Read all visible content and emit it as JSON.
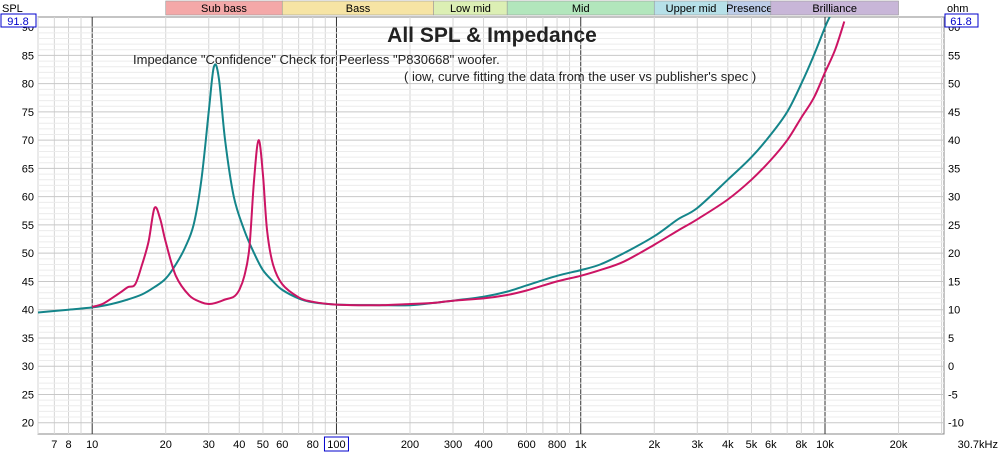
{
  "chart_data": {
    "type": "line",
    "title": "All SPL & Impedance",
    "subtitle_line1": "Impedance \"Confidence\" Check for Peerless \"P830668\" woofer.",
    "subtitle_line2": "( iow, curve fitting the data from  the user vs publisher's spec )",
    "left_axis": {
      "unit": "SPL",
      "top_value": "91.8",
      "ylim": [
        18,
        91.8
      ],
      "ticks": [
        90,
        85,
        80,
        75,
        70,
        65,
        60,
        55,
        50,
        45,
        40,
        35,
        30,
        25,
        20
      ]
    },
    "right_axis": {
      "unit": "ohm",
      "top_value": "61.8",
      "ylim": [
        -12,
        61.8
      ],
      "ticks": [
        60,
        55,
        50,
        45,
        40,
        35,
        30,
        25,
        20,
        15,
        10,
        5,
        0,
        -5,
        -10
      ]
    },
    "x_axis": {
      "scale": "log",
      "xlim": [
        6,
        30700
      ],
      "tick_labels": [
        {
          "v": 7,
          "t": "7"
        },
        {
          "v": 8,
          "t": "8"
        },
        {
          "v": 10,
          "t": "10"
        },
        {
          "v": 20,
          "t": "20"
        },
        {
          "v": 30,
          "t": "30"
        },
        {
          "v": 40,
          "t": "40"
        },
        {
          "v": 50,
          "t": "50"
        },
        {
          "v": 60,
          "t": "60"
        },
        {
          "v": 80,
          "t": "80"
        },
        {
          "v": 100,
          "t": "100"
        },
        {
          "v": 200,
          "t": "200"
        },
        {
          "v": 300,
          "t": "300"
        },
        {
          "v": 400,
          "t": "400"
        },
        {
          "v": 600,
          "t": "600"
        },
        {
          "v": 800,
          "t": "800"
        },
        {
          "v": 1000,
          "t": "1k"
        },
        {
          "v": 2000,
          "t": "2k"
        },
        {
          "v": 3000,
          "t": "3k"
        },
        {
          "v": 4000,
          "t": "4k"
        },
        {
          "v": 5000,
          "t": "5k"
        },
        {
          "v": 6000,
          "t": "6k"
        },
        {
          "v": 8000,
          "t": "8k"
        },
        {
          "v": 10000,
          "t": "10k"
        },
        {
          "v": 20000,
          "t": "20k"
        },
        {
          "v": 30700,
          "t": "30.7kHz"
        }
      ]
    },
    "bands": [
      {
        "name": "Sub bass",
        "from": 20,
        "to": 60,
        "color": "#f4a8a8"
      },
      {
        "name": "Bass",
        "from": 60,
        "to": 250,
        "color": "#f6e4a4"
      },
      {
        "name": "Low mid",
        "from": 250,
        "to": 500,
        "color": "#dcefb4"
      },
      {
        "name": "Mid",
        "from": 500,
        "to": 2000,
        "color": "#b2e6bc"
      },
      {
        "name": "Upper mid",
        "from": 2000,
        "to": 4000,
        "color": "#b6e0e8"
      },
      {
        "name": "Presence",
        "from": 4000,
        "to": 6000,
        "color": "#bccce8"
      },
      {
        "name": "Brilliance",
        "from": 6000,
        "to": 20000,
        "color": "#c8b6d8"
      }
    ],
    "series": [
      {
        "color": "#14858a",
        "axis": "right",
        "points": [
          [
            6,
            9.5
          ],
          [
            8,
            10
          ],
          [
            10,
            10.4
          ],
          [
            12,
            11
          ],
          [
            14,
            11.8
          ],
          [
            16,
            12.7
          ],
          [
            18,
            14
          ],
          [
            20,
            15.5
          ],
          [
            22,
            18
          ],
          [
            24,
            21
          ],
          [
            26,
            25
          ],
          [
            28,
            33
          ],
          [
            30,
            45
          ],
          [
            31.5,
            53
          ],
          [
            33,
            51
          ],
          [
            35,
            40
          ],
          [
            38,
            30
          ],
          [
            42,
            24
          ],
          [
            46,
            20
          ],
          [
            50,
            17
          ],
          [
            55,
            15
          ],
          [
            60,
            13.5
          ],
          [
            70,
            12
          ],
          [
            80,
            11.3
          ],
          [
            100,
            10.9
          ],
          [
            150,
            10.8
          ],
          [
            200,
            10.8
          ],
          [
            250,
            11.2
          ],
          [
            300,
            11.6
          ],
          [
            400,
            12.3
          ],
          [
            500,
            13.2
          ],
          [
            600,
            14.3
          ],
          [
            800,
            16
          ],
          [
            1000,
            17
          ],
          [
            1200,
            18
          ],
          [
            1500,
            20
          ],
          [
            2000,
            23
          ],
          [
            2500,
            26
          ],
          [
            3000,
            28
          ],
          [
            4000,
            33
          ],
          [
            5000,
            37
          ],
          [
            6000,
            41
          ],
          [
            7000,
            45
          ],
          [
            8000,
            50
          ],
          [
            9000,
            55
          ],
          [
            10000,
            60
          ],
          [
            10500,
            62
          ]
        ]
      },
      {
        "color": "#cc1464",
        "axis": "right",
        "points": [
          [
            10,
            10.5
          ],
          [
            11,
            11
          ],
          [
            12,
            12
          ],
          [
            13,
            13
          ],
          [
            14,
            14
          ],
          [
            15,
            14.5
          ],
          [
            16,
            18
          ],
          [
            17,
            22
          ],
          [
            18,
            28
          ],
          [
            19,
            26
          ],
          [
            20,
            22
          ],
          [
            22,
            16
          ],
          [
            25,
            12.5
          ],
          [
            28,
            11.3
          ],
          [
            30,
            11
          ],
          [
            32,
            11.2
          ],
          [
            35,
            11.8
          ],
          [
            38,
            12.3
          ],
          [
            40,
            13.5
          ],
          [
            42,
            16
          ],
          [
            44,
            21
          ],
          [
            46,
            33
          ],
          [
            48,
            40
          ],
          [
            50,
            34
          ],
          [
            52,
            24
          ],
          [
            55,
            18
          ],
          [
            60,
            14.5
          ],
          [
            70,
            12.2
          ],
          [
            80,
            11.4
          ],
          [
            100,
            10.9
          ],
          [
            150,
            10.8
          ],
          [
            200,
            11
          ],
          [
            250,
            11.2
          ],
          [
            300,
            11.6
          ],
          [
            400,
            12
          ],
          [
            500,
            12.6
          ],
          [
            600,
            13.4
          ],
          [
            800,
            15
          ],
          [
            1000,
            16
          ],
          [
            1200,
            17
          ],
          [
            1500,
            18.5
          ],
          [
            2000,
            21.5
          ],
          [
            2500,
            24
          ],
          [
            3000,
            26
          ],
          [
            4000,
            29.5
          ],
          [
            5000,
            33
          ],
          [
            6000,
            36.5
          ],
          [
            7000,
            40
          ],
          [
            8000,
            44
          ],
          [
            9000,
            47.5
          ],
          [
            10000,
            52
          ],
          [
            11000,
            56
          ],
          [
            12000,
            61
          ]
        ]
      }
    ],
    "grid": true
  }
}
